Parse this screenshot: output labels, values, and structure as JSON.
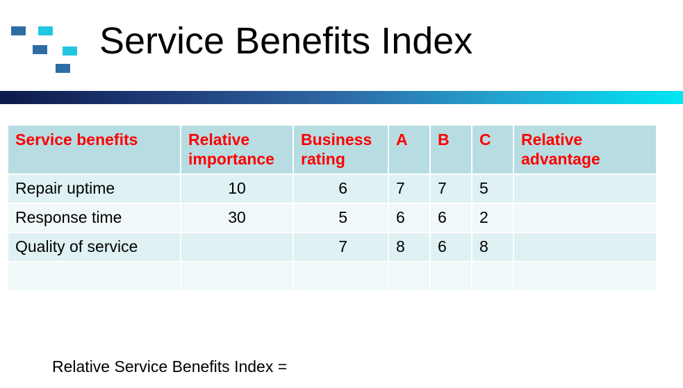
{
  "title": "Service Benefits Index",
  "colors": {
    "header_bg": "#b7dde2",
    "header_text": "#ff0000",
    "row_odd": "#dff1f3",
    "row_even": "#f0f8f9",
    "logo_dark": "#2e6da4",
    "logo_light": "#22c7e0"
  },
  "logo_icon": "blue-squares-logo",
  "table": {
    "headers": [
      "Service benefits",
      "Relative importance",
      "Business rating",
      "A",
      "B",
      "C",
      "Relative advantage"
    ],
    "rows": [
      [
        "Repair uptime",
        "10",
        "6",
        "7",
        "7",
        "5",
        ""
      ],
      [
        "Response time",
        "30",
        "5",
        "6",
        "6",
        "2",
        ""
      ],
      [
        "Quality of service",
        "",
        "7",
        "8",
        "6",
        "8",
        ""
      ],
      [
        "",
        "",
        "",
        "",
        "",
        "",
        ""
      ]
    ]
  },
  "footer_text": "Relative Service Benefits Index ="
}
